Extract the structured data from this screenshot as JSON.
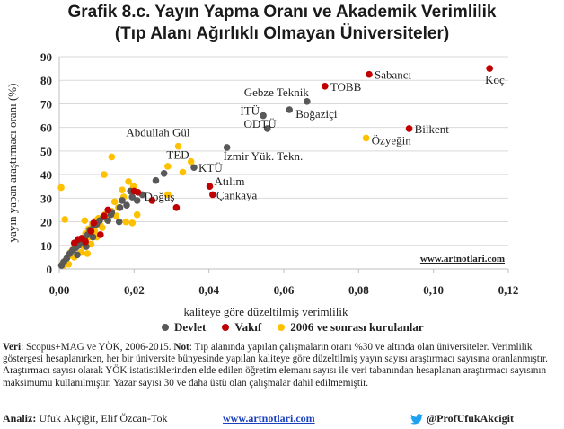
{
  "title_line1": "Grafik 8.c. Yayın Yapma Oranı ve Akademik Verimlilik",
  "title_line2": "(Tıp Alanı Ağırlıklı Olmayan Üniversiteler)",
  "colors": {
    "devlet": "#595959",
    "vakif": "#c00000",
    "yeni": "#ffc000"
  },
  "chart_data": {
    "type": "scatter",
    "xlabel": "kaliteye göre düzeltilmiş verimlilik",
    "ylabel": "yayın yapan araştırmacı oranı (%)",
    "xlim": [
      0,
      0.12
    ],
    "ylim": [
      0,
      90
    ],
    "x_ticks": [
      "0,00",
      "0,02",
      "0,04",
      "0,06",
      "0,08",
      "0,10",
      "0,12"
    ],
    "y_ticks": [
      "0",
      "10",
      "20",
      "30",
      "40",
      "50",
      "60",
      "70",
      "80",
      "90"
    ],
    "watermark": "www.artnotlari.com",
    "series": [
      {
        "name": "Devlet",
        "color": "#595959",
        "points": [
          [
            0.0662,
            71
          ],
          [
            0.0545,
            65
          ],
          [
            0.0556,
            59.5
          ],
          [
            0.0615,
            67.5
          ],
          [
            0.0448,
            51.5
          ],
          [
            0.036,
            43
          ],
          [
            0.028,
            40.5
          ],
          [
            0.0258,
            37.5
          ],
          [
            0.0222,
            31.5
          ],
          [
            0.0208,
            29
          ],
          [
            0.019,
            33
          ],
          [
            0.018,
            27
          ],
          [
            0.0168,
            29
          ],
          [
            0.0162,
            26
          ],
          [
            0.0138,
            23
          ],
          [
            0.013,
            20.5
          ],
          [
            0.0118,
            22
          ],
          [
            0.0108,
            20.5
          ],
          [
            0.01,
            19
          ],
          [
            0.0092,
            18.5
          ],
          [
            0.0082,
            16.5
          ],
          [
            0.0076,
            14.5
          ],
          [
            0.0068,
            12.5
          ],
          [
            0.006,
            11
          ],
          [
            0.0052,
            10
          ],
          [
            0.0044,
            9
          ],
          [
            0.0036,
            8
          ],
          [
            0.0028,
            6.5
          ],
          [
            0.002,
            4.5
          ],
          [
            0.0012,
            3
          ],
          [
            0.0006,
            1.5
          ],
          [
            0.016,
            20
          ],
          [
            0.014,
            24
          ],
          [
            0.0195,
            30.5
          ],
          [
            0.009,
            13.5
          ],
          [
            0.0048,
            6
          ],
          [
            0.0072,
            9.5
          ]
        ]
      },
      {
        "name": "Vakıf",
        "color": "#c00000",
        "points": [
          [
            0.115,
            85
          ],
          [
            0.0828,
            82.5
          ],
          [
            0.071,
            77.5
          ],
          [
            0.0935,
            59.5
          ],
          [
            0.0402,
            35
          ],
          [
            0.041,
            31.5
          ],
          [
            0.0313,
            26
          ],
          [
            0.02,
            33
          ],
          [
            0.021,
            32.5
          ],
          [
            0.0248,
            29
          ],
          [
            0.013,
            25
          ],
          [
            0.012,
            22.5
          ],
          [
            0.0092,
            19.5
          ],
          [
            0.0085,
            16
          ],
          [
            0.011,
            14.5
          ],
          [
            0.006,
            13
          ],
          [
            0.005,
            12.5
          ],
          [
            0.004,
            11
          ],
          [
            0.007,
            11.5
          ]
        ]
      },
      {
        "name": "2006 ve sonrası kurulanlar",
        "color": "#ffc000",
        "points": [
          [
            0.082,
            55.5
          ],
          [
            0.0318,
            52
          ],
          [
            0.0352,
            45.5
          ],
          [
            0.029,
            43.5
          ],
          [
            0.033,
            41
          ],
          [
            0.014,
            47.5
          ],
          [
            0.012,
            40
          ],
          [
            0.0185,
            37
          ],
          [
            0.0198,
            35
          ],
          [
            0.0168,
            33.5
          ],
          [
            0.0172,
            30.5
          ],
          [
            0.0148,
            28.5
          ],
          [
            0.0158,
            26
          ],
          [
            0.014,
            24.5
          ],
          [
            0.0122,
            23
          ],
          [
            0.0105,
            21.5
          ],
          [
            0.0098,
            20.5
          ],
          [
            0.0088,
            19
          ],
          [
            0.0078,
            17
          ],
          [
            0.007,
            15
          ],
          [
            0.0062,
            13
          ],
          [
            0.0055,
            12
          ],
          [
            0.0048,
            10
          ],
          [
            0.0042,
            9
          ],
          [
            0.0035,
            8
          ],
          [
            0.003,
            7
          ],
          [
            0.0025,
            5.5
          ],
          [
            0.0018,
            4
          ],
          [
            0.001,
            2.5
          ],
          [
            0.0005,
            34.5
          ],
          [
            0.0015,
            21
          ],
          [
            0.029,
            31.5
          ],
          [
            0.0208,
            23
          ],
          [
            0.0178,
            20
          ],
          [
            0.0195,
            19.5
          ],
          [
            0.011,
            18.5
          ],
          [
            0.008,
            13.5
          ],
          [
            0.0065,
            9.5
          ],
          [
            0.0058,
            7
          ],
          [
            0.004,
            5
          ],
          [
            0.0075,
            6.5
          ],
          [
            0.0095,
            16
          ],
          [
            0.0115,
            17.5
          ],
          [
            0.0128,
            21
          ],
          [
            0.01,
            13.5
          ],
          [
            0.0085,
            10.5
          ],
          [
            0.0068,
            20.5
          ],
          [
            0.0025,
            2
          ],
          [
            0.0012,
            1.5
          ],
          [
            0.0152,
            22.5
          ]
        ]
      }
    ],
    "annotations": [
      {
        "text": "Koç",
        "x": 0.115,
        "y": 85,
        "anchor": "start",
        "dx": -5,
        "dy": 17
      },
      {
        "text": "Sabancı",
        "x": 0.0828,
        "y": 82.5,
        "anchor": "start",
        "dx": 6,
        "dy": 5
      },
      {
        "text": "TOBB",
        "x": 0.071,
        "y": 77.5,
        "anchor": "start",
        "dx": 6,
        "dy": 5
      },
      {
        "text": "Gebze Teknik",
        "x": 0.0662,
        "y": 71,
        "anchor": "end",
        "dx": 2,
        "dy": -6
      },
      {
        "text": "Boğaziçi",
        "x": 0.0615,
        "y": 67.5,
        "anchor": "start",
        "dx": 7,
        "dy": 9
      },
      {
        "text": "İTÜ",
        "x": 0.0545,
        "y": 65,
        "anchor": "end",
        "dx": -4,
        "dy": -1
      },
      {
        "text": "ODTÜ",
        "x": 0.0556,
        "y": 59.5,
        "anchor": "end",
        "dx": 10,
        "dy": -1
      },
      {
        "text": "Bilkent",
        "x": 0.0935,
        "y": 59.5,
        "anchor": "start",
        "dx": 6,
        "dy": 5
      },
      {
        "text": "Özyeğin",
        "x": 0.082,
        "y": 55.5,
        "anchor": "start",
        "dx": 6,
        "dy": 7
      },
      {
        "text": "Abdullah Gül",
        "x": 0.0318,
        "y": 52,
        "anchor": "end",
        "dx": 13,
        "dy": -11
      },
      {
        "text": "İzmir Yük. Tekn.",
        "x": 0.0448,
        "y": 51.5,
        "anchor": "start",
        "dx": -4,
        "dy": 14
      },
      {
        "text": "TED",
        "x": 0.0352,
        "y": 45.5,
        "anchor": "end",
        "dx": -2,
        "dy": -3
      },
      {
        "text": "KTÜ",
        "x": 0.036,
        "y": 43,
        "anchor": "start",
        "dx": 5,
        "dy": 5
      },
      {
        "text": "Atılım",
        "x": 0.0402,
        "y": 35,
        "anchor": "start",
        "dx": 5,
        "dy": -1
      },
      {
        "text": "Doğuş",
        "x": 0.0313,
        "y": 26,
        "anchor": "end",
        "dx": -2,
        "dy": -8
      },
      {
        "text": "Çankaya",
        "x": 0.041,
        "y": 31.5,
        "anchor": "start",
        "dx": 4,
        "dy": 5
      }
    ]
  },
  "notes": {
    "veri_label": "Veri",
    "veri_text": ": Scopus+MAG ve YÖK, 2006-2015. ",
    "not_label": "Not",
    "not_text": ": Tıp alanında yapılan çalışmaların oranı %30 ve altında olan üniversiteler. Verimlilik göstergesi hesaplanırken, her bir üniversite bünyesinde yapılan kaliteye göre düzeltilmiş yayın sayısı araştırmacı sayısına oranlanmıştır. Araştırmacı sayısı olarak YÖK istatistiklerinden elde edilen öğretim elemanı sayısı ile veri tabanından hesaplanan araştırmacı sayısının maksimumu kullanılmıştır. Yazar sayısı 30 ve daha üstü olan çalışmalar dahil edilmemiştir."
  },
  "footer": {
    "analysis_label": "Analiz:",
    "analysis_names": " Ufuk Akçiğit, Elif Özcan-Tok",
    "site": "www.artnotlari.com",
    "twitter": "@ProfUfukAkcigit"
  }
}
